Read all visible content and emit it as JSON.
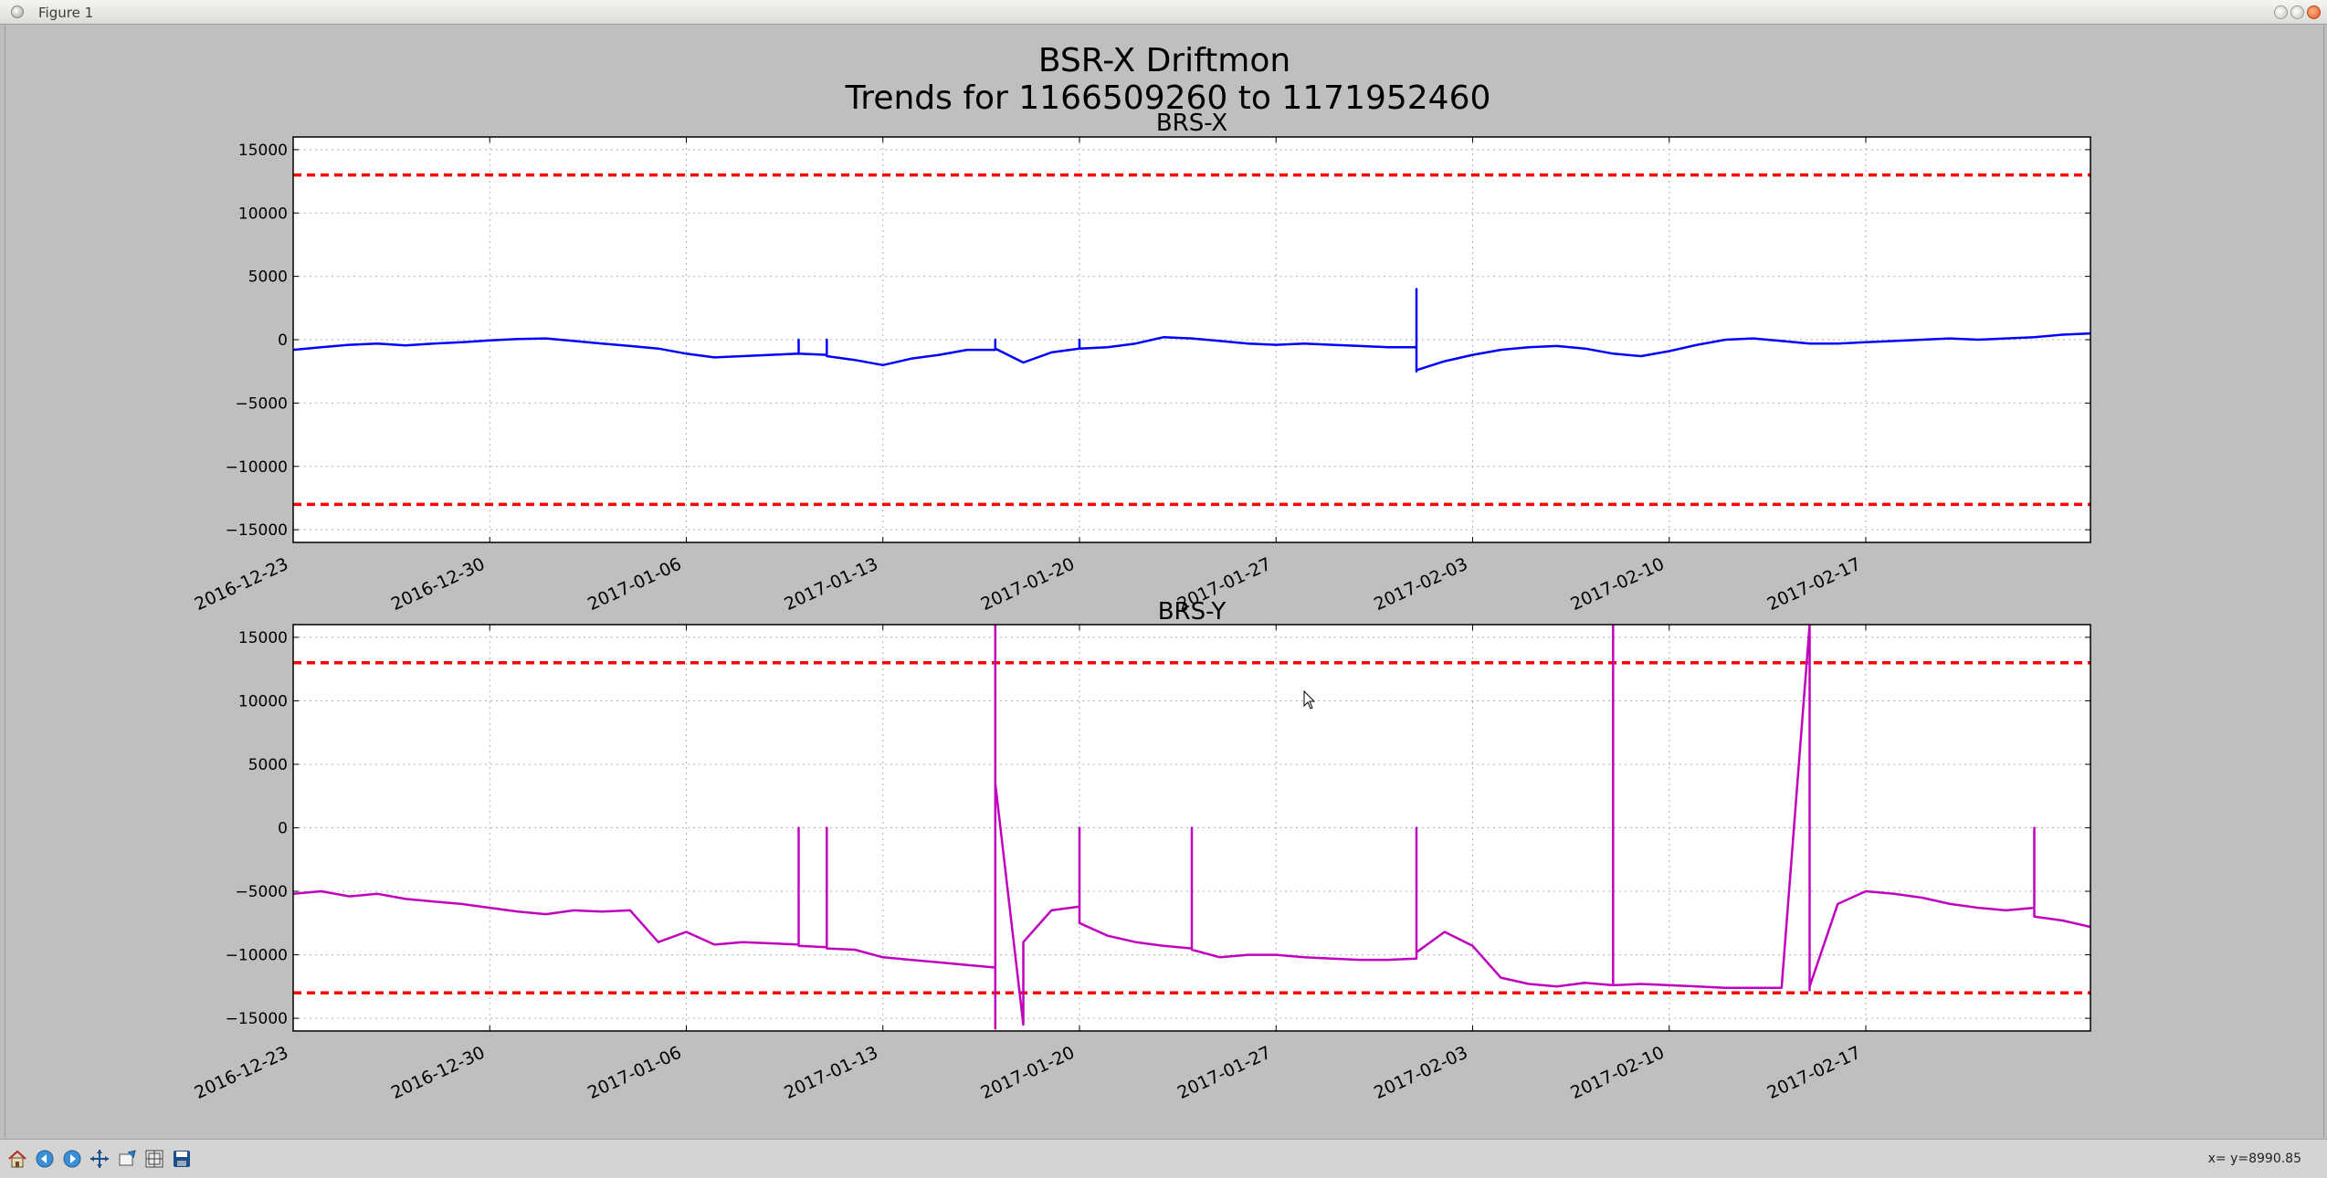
{
  "window": {
    "title": "Figure 1"
  },
  "toolbar": {
    "buttons": [
      "home-icon",
      "back-icon",
      "forward-icon",
      "pan-icon",
      "zoom-icon",
      "configure-subplots-icon",
      "save-icon"
    ],
    "coord_readout": "x= y=8990.85"
  },
  "colors": {
    "figure_bg": "#bfbfbf",
    "axes_bg": "#ffffff",
    "brs_x_line": "#0000ff",
    "brs_y_line": "#bf00bf",
    "threshold": "#ff0000",
    "grid": "#b0b0b0"
  },
  "chart_data": {
    "suptitle_line1": "BSR-X Driftmon",
    "suptitle_line2": "Trends for 1166509260 to 1171952460",
    "x_ticks": [
      "2016-12-23",
      "2016-12-30",
      "2017-01-06",
      "2017-01-13",
      "2017-01-20",
      "2017-01-27",
      "2017-02-03",
      "2017-02-10",
      "2017-02-17"
    ],
    "x_range": [
      "2016-12-23",
      "2017-02-25"
    ],
    "subplots": [
      {
        "type": "line",
        "title": "BRS-X",
        "series_color": "#0000ff",
        "ylim": [
          -16000,
          16000
        ],
        "y_ticks": [
          15000,
          10000,
          5000,
          0,
          -5000,
          -10000,
          -15000
        ],
        "y_tick_labels": [
          "15000",
          "10000",
          "5000",
          "0",
          "−5000",
          "−10000",
          "−15000"
        ],
        "grid": true,
        "thresholds": [
          13000,
          -13000
        ],
        "points": [
          [
            "2016-12-23",
            -800
          ],
          [
            "2016-12-24",
            -600
          ],
          [
            "2016-12-25",
            -400
          ],
          [
            "2016-12-26",
            -300
          ],
          [
            "2016-12-27",
            -450
          ],
          [
            "2016-12-28",
            -300
          ],
          [
            "2016-12-29",
            -200
          ],
          [
            "2016-12-30",
            -50
          ],
          [
            "2016-12-31",
            50
          ],
          [
            "2017-01-01",
            100
          ],
          [
            "2017-01-02",
            -100
          ],
          [
            "2017-01-03",
            -300
          ],
          [
            "2017-01-04",
            -500
          ],
          [
            "2017-01-05",
            -700
          ],
          [
            "2017-01-06",
            -1100
          ],
          [
            "2017-01-07",
            -1400
          ],
          [
            "2017-01-08",
            -1300
          ],
          [
            "2017-01-09",
            -1200
          ],
          [
            "2017-01-10",
            -1100
          ],
          [
            "2017-01-10",
            0
          ],
          [
            "2017-01-10",
            -1100
          ],
          [
            "2017-01-11",
            -1200
          ],
          [
            "2017-01-11",
            0
          ],
          [
            "2017-01-11",
            -1300
          ],
          [
            "2017-01-12",
            -1600
          ],
          [
            "2017-01-13",
            -2000
          ],
          [
            "2017-01-14",
            -1500
          ],
          [
            "2017-01-15",
            -1200
          ],
          [
            "2017-01-16",
            -800
          ],
          [
            "2017-01-17",
            -800
          ],
          [
            "2017-01-17",
            0
          ],
          [
            "2017-01-17",
            -700
          ],
          [
            "2017-01-18",
            -1800
          ],
          [
            "2017-01-19",
            -1000
          ],
          [
            "2017-01-20",
            -700
          ],
          [
            "2017-01-20",
            0
          ],
          [
            "2017-01-20",
            -700
          ],
          [
            "2017-01-21",
            -600
          ],
          [
            "2017-01-22",
            -300
          ],
          [
            "2017-01-23",
            200
          ],
          [
            "2017-01-24",
            100
          ],
          [
            "2017-01-25",
            -100
          ],
          [
            "2017-01-26",
            -300
          ],
          [
            "2017-01-27",
            -400
          ],
          [
            "2017-01-28",
            -300
          ],
          [
            "2017-01-29",
            -400
          ],
          [
            "2017-01-30",
            -500
          ],
          [
            "2017-01-31",
            -600
          ],
          [
            "2017-02-01",
            -600
          ],
          [
            "2017-02-01",
            4000
          ],
          [
            "2017-02-01",
            -2500
          ],
          [
            "2017-02-01",
            0
          ],
          [
            "2017-02-01",
            -2400
          ],
          [
            "2017-02-02",
            -1700
          ],
          [
            "2017-02-03",
            -1200
          ],
          [
            "2017-02-04",
            -800
          ],
          [
            "2017-02-05",
            -600
          ],
          [
            "2017-02-06",
            -500
          ],
          [
            "2017-02-07",
            -700
          ],
          [
            "2017-02-08",
            -1100
          ],
          [
            "2017-02-09",
            -1300
          ],
          [
            "2017-02-10",
            -900
          ],
          [
            "2017-02-11",
            -400
          ],
          [
            "2017-02-12",
            0
          ],
          [
            "2017-02-13",
            100
          ],
          [
            "2017-02-14",
            -100
          ],
          [
            "2017-02-15",
            -300
          ],
          [
            "2017-02-16",
            -300
          ],
          [
            "2017-02-17",
            -200
          ],
          [
            "2017-02-18",
            -100
          ],
          [
            "2017-02-19",
            0
          ],
          [
            "2017-02-20",
            100
          ],
          [
            "2017-02-21",
            0
          ],
          [
            "2017-02-22",
            100
          ],
          [
            "2017-02-23",
            200
          ],
          [
            "2017-02-24",
            400
          ],
          [
            "2017-02-25",
            500
          ]
        ]
      },
      {
        "type": "line",
        "title": "BRS-Y",
        "series_color": "#bf00bf",
        "ylim": [
          -16000,
          16000
        ],
        "y_ticks": [
          15000,
          10000,
          5000,
          0,
          -5000,
          -10000,
          -15000
        ],
        "y_tick_labels": [
          "15000",
          "10000",
          "5000",
          "0",
          "−5000",
          "−10000",
          "−15000"
        ],
        "grid": true,
        "thresholds": [
          13000,
          -13000
        ],
        "points": [
          [
            "2016-12-23",
            -5200
          ],
          [
            "2016-12-24",
            -5000
          ],
          [
            "2016-12-25",
            -5400
          ],
          [
            "2016-12-26",
            -5200
          ],
          [
            "2016-12-27",
            -5600
          ],
          [
            "2016-12-28",
            -5800
          ],
          [
            "2016-12-29",
            -6000
          ],
          [
            "2016-12-30",
            -6300
          ],
          [
            "2016-12-31",
            -6600
          ],
          [
            "2017-01-01",
            -6800
          ],
          [
            "2017-01-02",
            -6500
          ],
          [
            "2017-01-03",
            -6600
          ],
          [
            "2017-01-04",
            -6500
          ],
          [
            "2017-01-05",
            -9000
          ],
          [
            "2017-01-06",
            -8200
          ],
          [
            "2017-01-07",
            -9200
          ],
          [
            "2017-01-08",
            -9000
          ],
          [
            "2017-01-09",
            -9100
          ],
          [
            "2017-01-10",
            -9200
          ],
          [
            "2017-01-10",
            0
          ],
          [
            "2017-01-10",
            -9300
          ],
          [
            "2017-01-11",
            -9400
          ],
          [
            "2017-01-11",
            0
          ],
          [
            "2017-01-11",
            -9500
          ],
          [
            "2017-01-12",
            -9600
          ],
          [
            "2017-01-13",
            -10200
          ],
          [
            "2017-01-14",
            -10400
          ],
          [
            "2017-01-15",
            -10600
          ],
          [
            "2017-01-16",
            -10800
          ],
          [
            "2017-01-17",
            -11000
          ],
          [
            "2017-01-17",
            16000
          ],
          [
            "2017-01-17",
            -15800
          ],
          [
            "2017-01-17",
            3500
          ],
          [
            "2017-01-18",
            -15500
          ],
          [
            "2017-01-18",
            -9000
          ],
          [
            "2017-01-19",
            -6500
          ],
          [
            "2017-01-20",
            -6200
          ],
          [
            "2017-01-20",
            0
          ],
          [
            "2017-01-20",
            -7500
          ],
          [
            "2017-01-21",
            -8500
          ],
          [
            "2017-01-22",
            -9000
          ],
          [
            "2017-01-23",
            -9300
          ],
          [
            "2017-01-24",
            -9500
          ],
          [
            "2017-01-24",
            0
          ],
          [
            "2017-01-24",
            -9600
          ],
          [
            "2017-01-25",
            -10200
          ],
          [
            "2017-01-26",
            -10000
          ],
          [
            "2017-01-27",
            -10000
          ],
          [
            "2017-01-28",
            -10200
          ],
          [
            "2017-01-29",
            -10300
          ],
          [
            "2017-01-30",
            -10400
          ],
          [
            "2017-01-31",
            -10400
          ],
          [
            "2017-02-01",
            -10300
          ],
          [
            "2017-02-01",
            0
          ],
          [
            "2017-02-01",
            -9800
          ],
          [
            "2017-02-02",
            -8200
          ],
          [
            "2017-02-03",
            -9300
          ],
          [
            "2017-02-04",
            -11800
          ],
          [
            "2017-02-05",
            -12300
          ],
          [
            "2017-02-06",
            -12500
          ],
          [
            "2017-02-07",
            -12200
          ],
          [
            "2017-02-08",
            -12400
          ],
          [
            "2017-02-08",
            16000
          ],
          [
            "2017-02-08",
            11500
          ],
          [
            "2017-02-08",
            16000
          ],
          [
            "2017-02-08",
            -12400
          ],
          [
            "2017-02-09",
            -12300
          ],
          [
            "2017-02-10",
            -12400
          ],
          [
            "2017-02-11",
            -12500
          ],
          [
            "2017-02-12",
            -12600
          ],
          [
            "2017-02-14",
            -12600
          ],
          [
            "2017-02-15",
            16000
          ],
          [
            "2017-02-15",
            -12800
          ],
          [
            "2017-02-15",
            0
          ],
          [
            "2017-02-15",
            -12500
          ],
          [
            "2017-02-16",
            -6000
          ],
          [
            "2017-02-17",
            -5000
          ],
          [
            "2017-02-18",
            -5200
          ],
          [
            "2017-02-19",
            -5500
          ],
          [
            "2017-02-20",
            -6000
          ],
          [
            "2017-02-21",
            -6300
          ],
          [
            "2017-02-22",
            -6500
          ],
          [
            "2017-02-23",
            -6300
          ],
          [
            "2017-02-23",
            0
          ],
          [
            "2017-02-23",
            -7000
          ],
          [
            "2017-02-24",
            -7300
          ],
          [
            "2017-02-25",
            -7800
          ]
        ]
      }
    ]
  }
}
